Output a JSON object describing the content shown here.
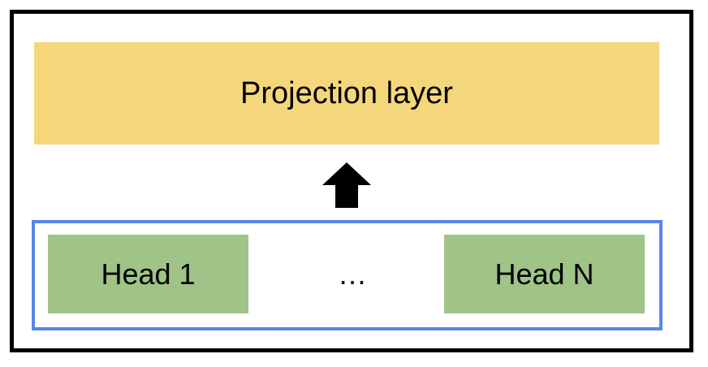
{
  "diagram": {
    "projection_label": "Projection layer",
    "ellipsis": "…",
    "heads": [
      {
        "label": "Head 1"
      },
      {
        "label": "Head N"
      }
    ],
    "colors": {
      "projection_fill": "#f5d77b",
      "head_fill": "#a0c387",
      "group_border": "#5b86e5",
      "frame_border": "#000000",
      "arrow_fill": "#000000"
    }
  }
}
